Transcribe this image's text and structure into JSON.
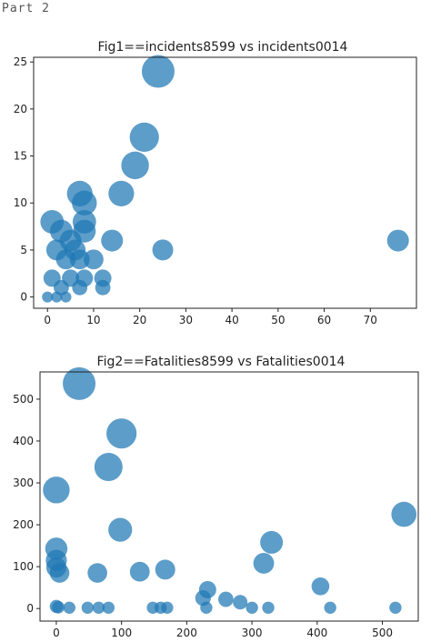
{
  "header": {
    "part_label": "Part 2"
  },
  "chart_data": [
    {
      "type": "scatter",
      "title": "Fig1==incidents8599 vs incidents0014",
      "xlabel": "",
      "ylabel": "",
      "xlim": [
        -3,
        80
      ],
      "ylim": [
        -1.2,
        25.5
      ],
      "xticks": [
        0,
        10,
        20,
        30,
        40,
        50,
        60,
        70
      ],
      "yticks": [
        0,
        5,
        10,
        15,
        20,
        25
      ],
      "marker_color": "#1f77b4",
      "grid": false,
      "points": [
        {
          "x": 24,
          "y": 24
        },
        {
          "x": 21,
          "y": 17
        },
        {
          "x": 19,
          "y": 14
        },
        {
          "x": 16,
          "y": 11
        },
        {
          "x": 7,
          "y": 11
        },
        {
          "x": 8,
          "y": 10
        },
        {
          "x": 1,
          "y": 8
        },
        {
          "x": 8,
          "y": 8
        },
        {
          "x": 3,
          "y": 7
        },
        {
          "x": 8,
          "y": 7
        },
        {
          "x": 5,
          "y": 6
        },
        {
          "x": 14,
          "y": 6
        },
        {
          "x": 76,
          "y": 6
        },
        {
          "x": 2,
          "y": 5
        },
        {
          "x": 6,
          "y": 5
        },
        {
          "x": 25,
          "y": 5
        },
        {
          "x": 4,
          "y": 4
        },
        {
          "x": 7,
          "y": 4
        },
        {
          "x": 10,
          "y": 4
        },
        {
          "x": 1,
          "y": 2
        },
        {
          "x": 5,
          "y": 2
        },
        {
          "x": 8,
          "y": 2
        },
        {
          "x": 12,
          "y": 2
        },
        {
          "x": 3,
          "y": 1
        },
        {
          "x": 7,
          "y": 1
        },
        {
          "x": 12,
          "y": 1
        },
        {
          "x": 0,
          "y": 0
        },
        {
          "x": 2,
          "y": 0
        },
        {
          "x": 4,
          "y": 0
        }
      ]
    },
    {
      "type": "scatter",
      "title": "Fig2==Fatalities8599 vs Fatalities0014",
      "xlabel": "",
      "ylabel": "",
      "xlim": [
        -25,
        555
      ],
      "ylim": [
        -30,
        565
      ],
      "xticks": [
        0,
        100,
        200,
        300,
        400,
        500
      ],
      "yticks": [
        0,
        100,
        200,
        300,
        400,
        500
      ],
      "marker_color": "#1f77b4",
      "grid": false,
      "points": [
        {
          "x": 35,
          "y": 537
        },
        {
          "x": 100,
          "y": 418
        },
        {
          "x": 80,
          "y": 338
        },
        {
          "x": 0,
          "y": 283
        },
        {
          "x": 98,
          "y": 188
        },
        {
          "x": 533,
          "y": 225
        },
        {
          "x": 0,
          "y": 143
        },
        {
          "x": 0,
          "y": 115
        },
        {
          "x": 330,
          "y": 158
        },
        {
          "x": 318,
          "y": 108
        },
        {
          "x": 0,
          "y": 98
        },
        {
          "x": 5,
          "y": 85
        },
        {
          "x": 63,
          "y": 85
        },
        {
          "x": 128,
          "y": 88
        },
        {
          "x": 167,
          "y": 93
        },
        {
          "x": 405,
          "y": 53
        },
        {
          "x": 232,
          "y": 45
        },
        {
          "x": 225,
          "y": 25
        },
        {
          "x": 260,
          "y": 22
        },
        {
          "x": 282,
          "y": 15
        },
        {
          "x": 0,
          "y": 5
        },
        {
          "x": 3,
          "y": 3
        },
        {
          "x": 20,
          "y": 2
        },
        {
          "x": 48,
          "y": 2
        },
        {
          "x": 65,
          "y": 2
        },
        {
          "x": 80,
          "y": 2
        },
        {
          "x": 148,
          "y": 2
        },
        {
          "x": 160,
          "y": 2
        },
        {
          "x": 170,
          "y": 2
        },
        {
          "x": 230,
          "y": 2
        },
        {
          "x": 300,
          "y": 2
        },
        {
          "x": 325,
          "y": 2
        },
        {
          "x": 420,
          "y": 2
        },
        {
          "x": 520,
          "y": 2
        }
      ]
    }
  ]
}
